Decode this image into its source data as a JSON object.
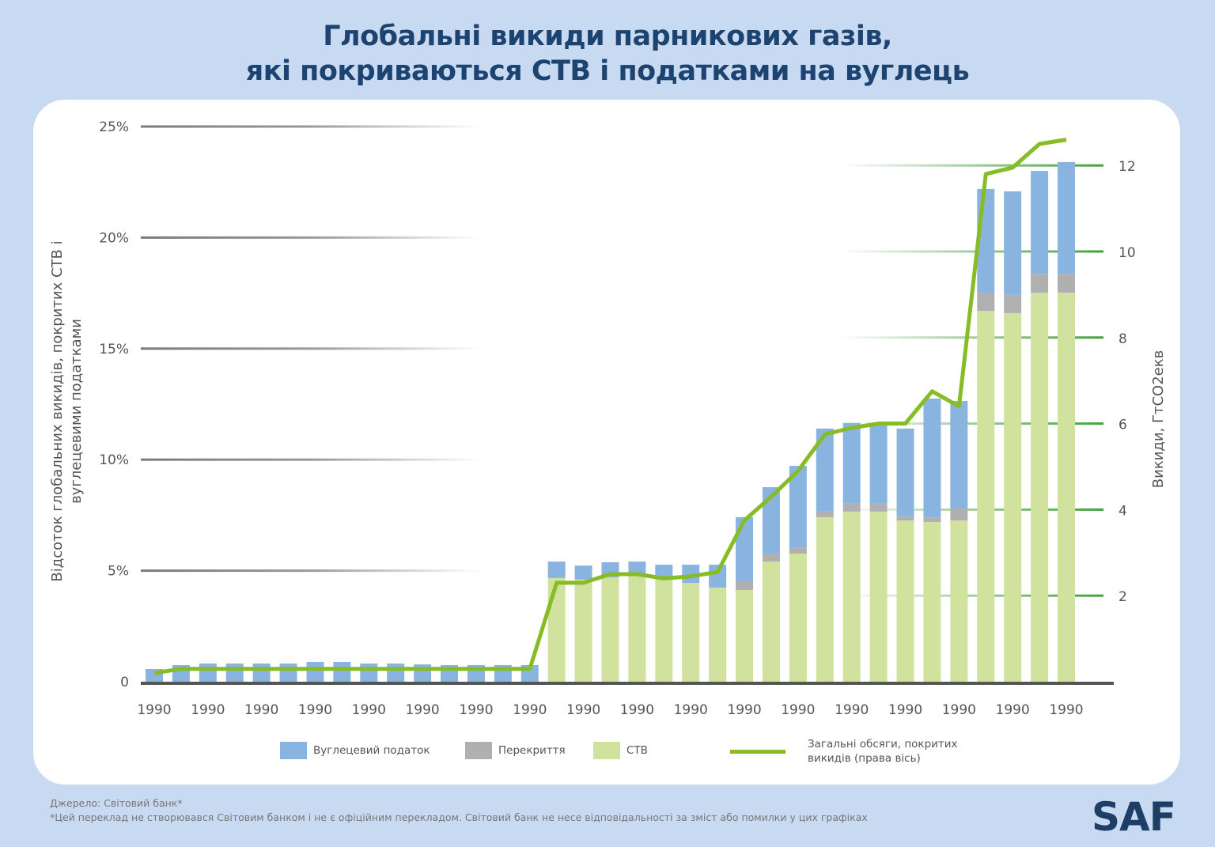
{
  "title": {
    "line1": "Глобальні викиди парникових газів,",
    "line2": "які покриваються СТВ і податками на вуглець"
  },
  "chart_data": {
    "type": "bar",
    "stacked": true,
    "title": "Глобальні викиди парникових газів, які покриваються СТВ і податками на вуглець",
    "x_tick_labels": [
      "1990",
      "1990",
      "1990",
      "1990",
      "1990",
      "1990",
      "1990",
      "1990",
      "1990",
      "1990",
      "1990",
      "1990",
      "1990",
      "1990",
      "1990",
      "1990",
      "1990",
      "1990"
    ],
    "ylabel": [
      "Відсоток глобальних викидів, покритих СТВ і",
      "вуглецевими податками"
    ],
    "y2label": "Викиди, ГтCO2екв",
    "ylim": [
      0,
      25
    ],
    "y2lim": [
      0,
      12.9
    ],
    "y_ticks": [
      "0",
      "5%",
      "10%",
      "15%",
      "20%",
      "25%"
    ],
    "y_tick_values": [
      0,
      5,
      10,
      15,
      20,
      25
    ],
    "y2_ticks": [
      "2",
      "4",
      "6",
      "8",
      "10",
      "12"
    ],
    "y2_tick_values": [
      2,
      4,
      6,
      8,
      10,
      12
    ],
    "grid": true,
    "legend_position": "bottom",
    "series": [
      {
        "name": "СТВ",
        "color": "#d0e29d",
        "axis": "left",
        "values": [
          0,
          0,
          0,
          0,
          0,
          0,
          0,
          0,
          0,
          0,
          0,
          0,
          0,
          0,
          0,
          4.67,
          4.6,
          4.7,
          4.75,
          4.6,
          4.45,
          4.24,
          4.13,
          5.41,
          5.77,
          7.41,
          7.66,
          7.66,
          7.26,
          7.19,
          7.26,
          16.7,
          16.6,
          17.52,
          17.52
        ]
      },
      {
        "name": "Перекриття",
        "color": "#b0b0b0",
        "axis": "left",
        "values": [
          0,
          0,
          0,
          0,
          0,
          0,
          0,
          0,
          0,
          0,
          0,
          0,
          0,
          0,
          0,
          0,
          0,
          0,
          0,
          0,
          0,
          0,
          0.36,
          0.36,
          0.28,
          0.25,
          0.36,
          0.36,
          0.21,
          0.21,
          0.53,
          0.82,
          0.82,
          0.85,
          0.85
        ]
      },
      {
        "name": "Вуглецевий податок",
        "color": "#8ab4e0",
        "axis": "left",
        "values": [
          0.57,
          0.75,
          0.82,
          0.82,
          0.82,
          0.82,
          0.89,
          0.89,
          0.82,
          0.82,
          0.78,
          0.75,
          0.75,
          0.75,
          0.75,
          0.74,
          0.63,
          0.68,
          0.66,
          0.67,
          0.82,
          1.03,
          2.92,
          2.99,
          3.67,
          3.74,
          3.63,
          3.58,
          3.93,
          5.35,
          4.85,
          4.67,
          4.66,
          4.63,
          5.03
        ]
      },
      {
        "name": "Загальні обсяги, покритих викидів (права вісь)",
        "type": "line",
        "color": "#86bc25",
        "axis": "right",
        "values": [
          0.2,
          0.3,
          0.3,
          0.3,
          0.3,
          0.3,
          0.3,
          0.3,
          0.3,
          0.3,
          0.3,
          0.3,
          0.3,
          0.3,
          0.3,
          2.3,
          2.3,
          2.5,
          2.5,
          2.4,
          2.45,
          2.55,
          3.75,
          4.3,
          4.9,
          5.75,
          5.9,
          6.0,
          6.0,
          6.75,
          6.4,
          11.8,
          11.95,
          12.5,
          12.6
        ]
      }
    ]
  },
  "legend": {
    "carbon_tax": "Вуглецевий податок",
    "overlap": "Перекриття",
    "ets": "СТВ",
    "total_line1": "Загальні обсяги, покритих",
    "total_line2": "викидів (права вісь)"
  },
  "footer": {
    "source": "Джерело: Світовий банк*",
    "disclaimer": "*Цей переклад не створювався Світовим банком і не є офіційним перекладом. Світовий банк не несе відповідальності за зміст або помилки у цих графіках"
  },
  "logo": "SAF"
}
